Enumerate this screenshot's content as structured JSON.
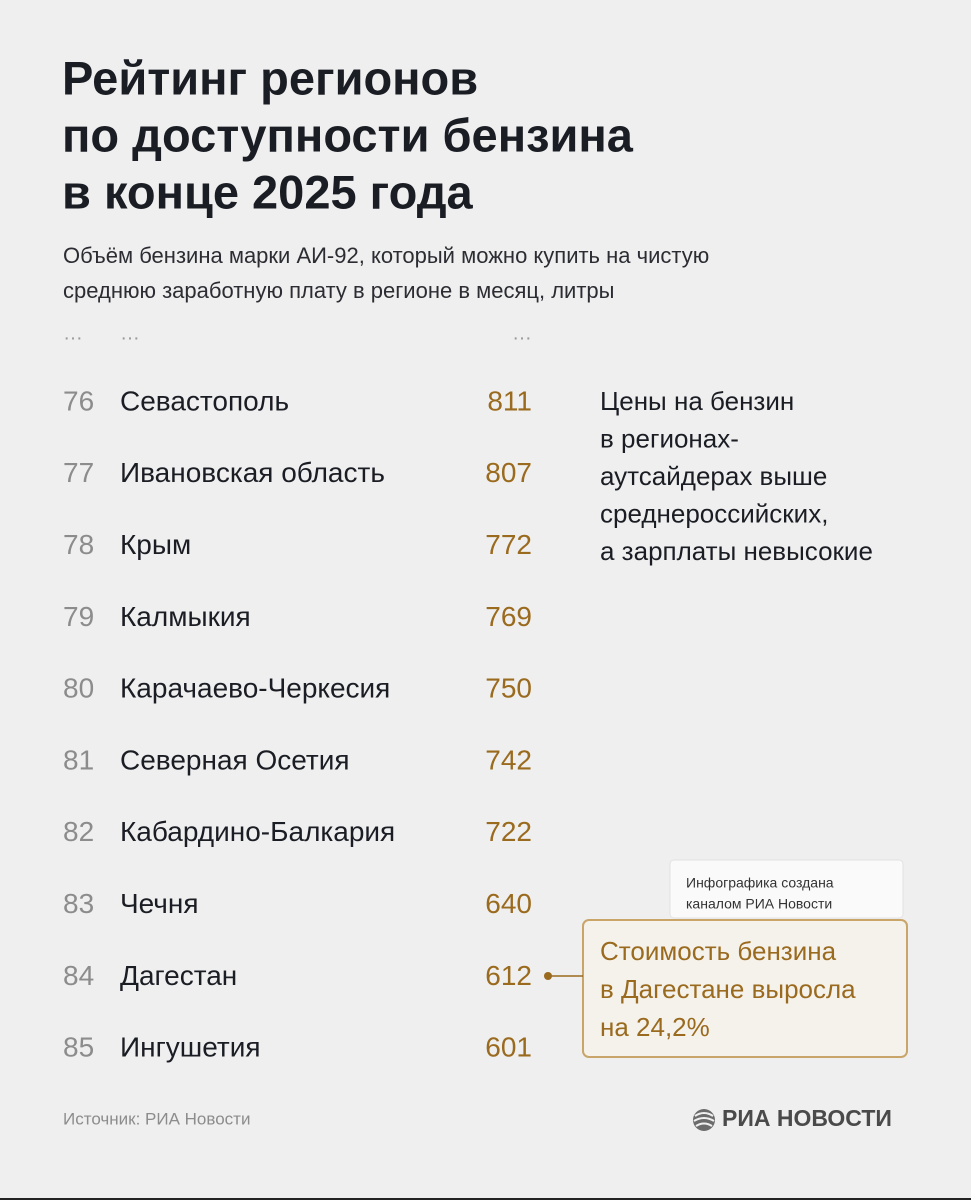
{
  "header": {
    "title": [
      "Рейтинг регионов",
      "по доступности бензина",
      "в конце 2025 года"
    ],
    "subtitle": [
      "Объём бензина марки АИ-92, который можно купить на чистую",
      "среднюю заработную плату в регионе в месяц, литры"
    ]
  },
  "ellipsis": [
    "…",
    "…",
    "…"
  ],
  "table": {
    "rows": [
      [
        76,
        "Севастополь",
        811
      ],
      [
        77,
        "Ивановская область",
        807
      ],
      [
        78,
        "Крым",
        772
      ],
      [
        79,
        "Калмыкия",
        769
      ],
      [
        80,
        "Карачаево-Черкесия",
        750
      ],
      [
        81,
        "Северная Осетия",
        742
      ],
      [
        82,
        "Кабардино-Балкария",
        722
      ],
      [
        83,
        "Чечня",
        640
      ],
      [
        84,
        "Дагестан",
        612
      ],
      [
        85,
        "Ингушетия",
        601
      ]
    ]
  },
  "note": [
    "Цены на бензин",
    "в регионах-",
    "аутсайдерах выше",
    "среднероссийских,",
    "а зарплаты невысокие"
  ],
  "callout": [
    "Стоимость бензина",
    "в Дагестане выросла",
    "на 24,2%"
  ],
  "credit": [
    "Инфографика создана",
    "каналом РИА Новости"
  ],
  "footer": {
    "source": "Источник: РИА Новости",
    "logo": "РИА НОВОСТИ"
  }
}
